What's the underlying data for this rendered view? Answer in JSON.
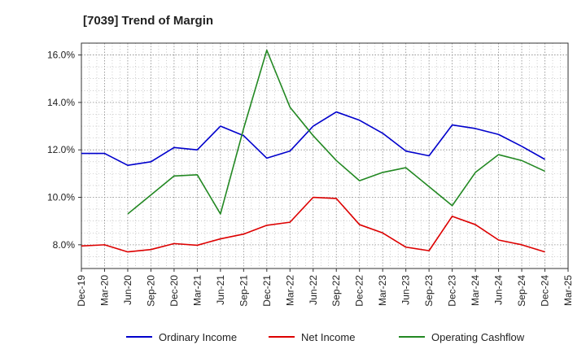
{
  "chart_data": {
    "type": "line",
    "title": "[7039]  Trend of Margin",
    "xlabel": "",
    "ylabel": "",
    "categories": [
      "Dec-19",
      "Mar-20",
      "Jun-20",
      "Sep-20",
      "Dec-20",
      "Mar-21",
      "Jun-21",
      "Sep-21",
      "Dec-21",
      "Mar-22",
      "Jun-22",
      "Sep-22",
      "Dec-22",
      "Mar-23",
      "Jun-23",
      "Sep-23",
      "Dec-23",
      "Mar-24",
      "Jun-24",
      "Sep-24",
      "Dec-24",
      "Mar-25"
    ],
    "yticks": [
      "8.0%",
      "10.0%",
      "12.0%",
      "14.0%",
      "16.0%"
    ],
    "ytick_values": [
      8,
      10,
      12,
      14,
      16
    ],
    "ylim": [
      7.0,
      16.5
    ],
    "grid": true,
    "legend_position": "bottom",
    "series": [
      {
        "name": "Ordinary Income",
        "color": "#0000cc",
        "values": [
          11.85,
          11.85,
          11.35,
          11.5,
          12.1,
          12.0,
          13.0,
          12.6,
          11.65,
          11.95,
          13.0,
          13.6,
          13.25,
          12.7,
          11.95,
          11.75,
          13.05,
          12.9,
          12.65,
          12.15,
          11.6,
          null
        ]
      },
      {
        "name": "Net Income",
        "color": "#dd0000",
        "values": [
          7.95,
          8.0,
          7.7,
          7.8,
          8.05,
          7.98,
          8.25,
          8.45,
          8.82,
          8.95,
          10.0,
          9.95,
          8.85,
          8.5,
          7.9,
          7.75,
          9.2,
          8.85,
          8.2,
          8.0,
          7.7,
          null
        ]
      },
      {
        "name": "Operating Cashflow",
        "color": "#228822",
        "values": [
          null,
          null,
          9.3,
          10.1,
          10.9,
          10.95,
          9.3,
          12.9,
          16.2,
          13.8,
          12.6,
          11.55,
          10.7,
          11.05,
          11.25,
          10.45,
          9.65,
          11.05,
          11.8,
          11.55,
          11.1,
          null
        ]
      }
    ]
  }
}
